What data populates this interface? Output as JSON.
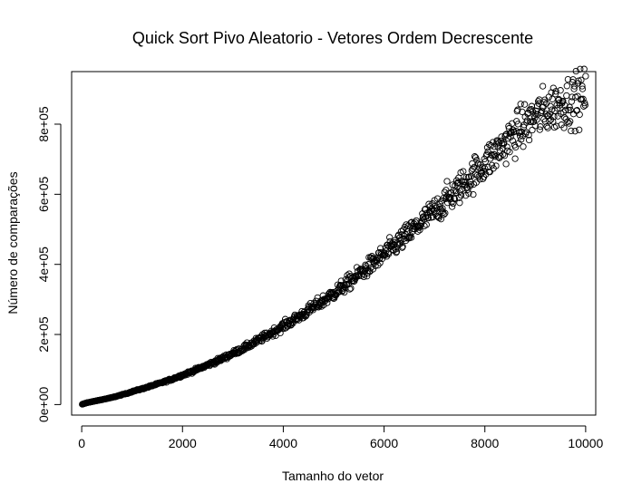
{
  "chart_data": {
    "type": "scatter",
    "title": "Quick Sort Pivo Aleatorio - Vetores Ordem Decrescente",
    "xlabel": "Tamanho do vetor",
    "ylabel": "Número de comparações",
    "xlim": [
      -200,
      10200
    ],
    "ylim": [
      -30000,
      950000
    ],
    "x_ticks": [
      0,
      2000,
      4000,
      6000,
      8000,
      10000
    ],
    "x_tick_labels": [
      "0",
      "2000",
      "4000",
      "6000",
      "8000",
      "10000"
    ],
    "y_ticks": [
      0,
      200000,
      400000,
      600000,
      800000
    ],
    "y_tick_labels": [
      "0e+00",
      "2e+05",
      "4e+05",
      "6e+05",
      "8e+05"
    ],
    "grid": false,
    "marker": "open-circle",
    "series": [
      {
        "name": "comparacoes",
        "x": [
          10,
          100,
          200,
          300,
          400,
          500,
          600,
          700,
          800,
          900,
          1000,
          1200,
          1400,
          1600,
          1800,
          2000,
          2200,
          2400,
          2600,
          2800,
          3000,
          3200,
          3400,
          3600,
          3800,
          4000,
          4200,
          4400,
          4600,
          4800,
          5000,
          5200,
          5400,
          5600,
          5800,
          6000,
          6200,
          6400,
          6600,
          6800,
          7000,
          7200,
          7400,
          7600,
          7800,
          8000,
          8200,
          8400,
          8600,
          8800,
          9000,
          9200,
          9400,
          9600,
          9800,
          10000
        ],
        "y": [
          800,
          5000,
          8000,
          11000,
          14000,
          17000,
          20000,
          24000,
          28000,
          32000,
          37000,
          45000,
          54000,
          63000,
          73000,
          84000,
          95000,
          107000,
          119000,
          132000,
          146000,
          160000,
          175000,
          191000,
          207000,
          224000,
          241000,
          259000,
          278000,
          297000,
          317000,
          338000,
          360000,
          382000,
          405000,
          428000,
          452000,
          476000,
          501000,
          526000,
          552000,
          578000,
          605000,
          632000,
          660000,
          688000,
          716000,
          744000,
          772000,
          798000,
          820000,
          838000,
          852000,
          862000,
          872000,
          885000
        ],
        "spread": "scatter around the trend widens with vector size (roughly ±3% at small sizes up to ±8% near 10000); about 1000 points, one per vector size from 0 to 10000 in steps of 10"
      }
    ]
  }
}
